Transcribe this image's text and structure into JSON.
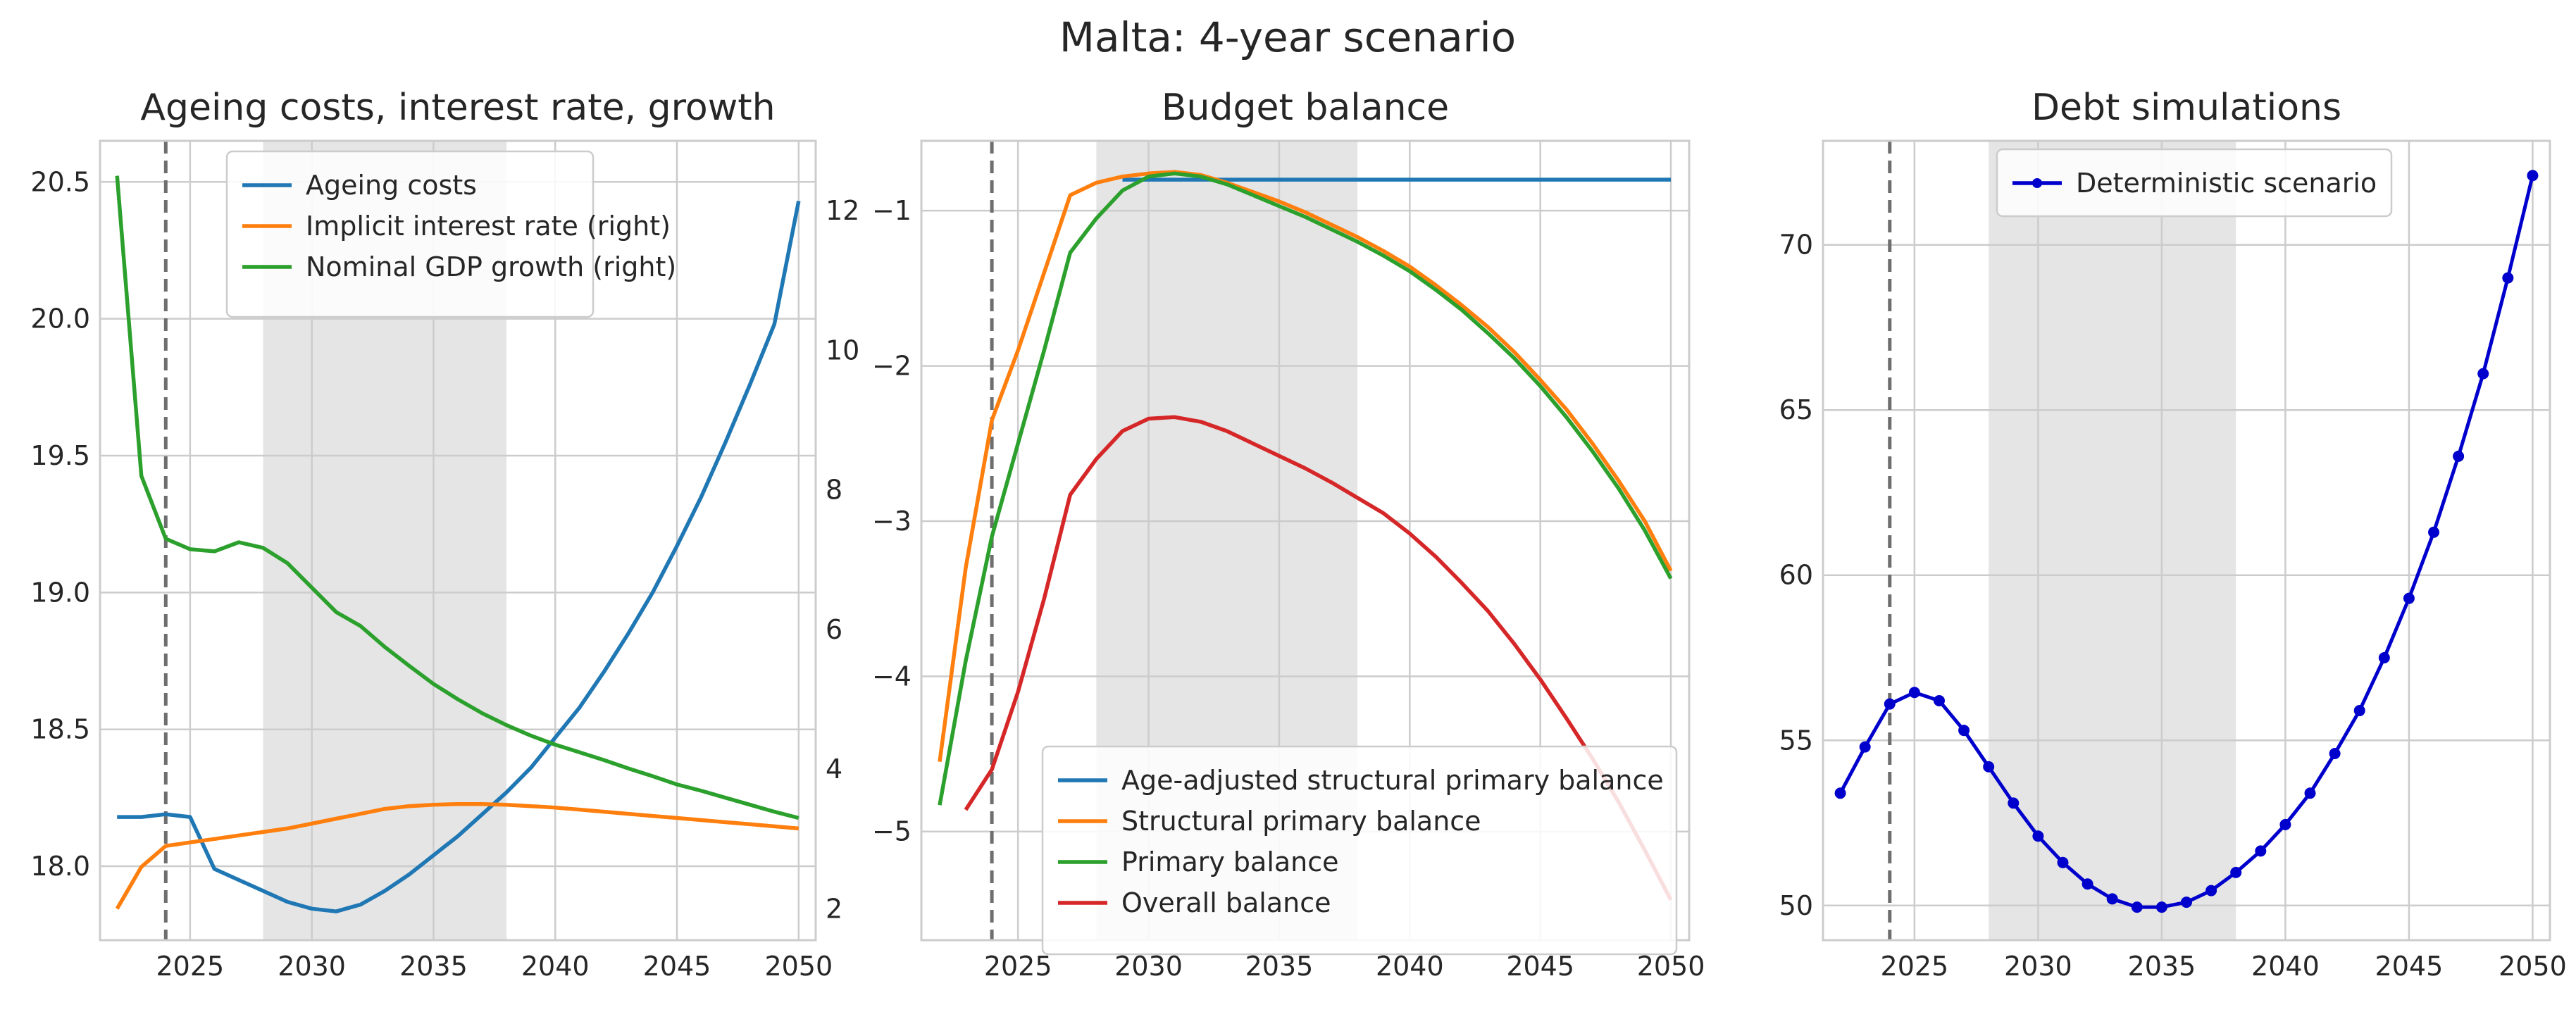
{
  "suptitle": "Malta: 4-year scenario",
  "colors": {
    "blue": "#1f77b4",
    "orange": "#ff7f0e",
    "green": "#2ca02c",
    "red": "#d62728",
    "debt": "#0000cc",
    "shade": "#e5e5e5",
    "grid": "#cccccc",
    "vline": "#6e6e6e"
  },
  "chart_data": [
    {
      "type": "line",
      "title": "Ageing costs, interest rate, growth",
      "x_ticks": [
        "2025",
        "2030",
        "2035",
        "2040",
        "2045",
        "2050"
      ],
      "xlim": [
        2021.3,
        2050.7
      ],
      "y_left": {
        "lim": [
          17.73,
          20.65
        ],
        "ticks": [
          "18.0",
          "18.5",
          "19.0",
          "19.5",
          "20.0",
          "20.5"
        ]
      },
      "y_right": {
        "lim": [
          1.55,
          13.0
        ],
        "ticks": [
          "2",
          "4",
          "6",
          "8",
          "10",
          "12"
        ]
      },
      "shaded_range": [
        2028,
        2038
      ],
      "vline_x": 2024,
      "grid": true,
      "legend_position": "upper-center",
      "series": [
        {
          "name": "Ageing costs",
          "axis": "left",
          "color": "blue",
          "x": [
            2022,
            2023,
            2024,
            2025,
            2026,
            2027,
            2028,
            2029,
            2030,
            2031,
            2032,
            2033,
            2034,
            2035,
            2036,
            2037,
            2038,
            2039,
            2040,
            2041,
            2042,
            2043,
            2044,
            2045,
            2046,
            2047,
            2048,
            2049,
            2050
          ],
          "y": [
            18.18,
            18.18,
            18.19,
            18.18,
            17.99,
            17.95,
            17.91,
            17.87,
            17.845,
            17.835,
            17.86,
            17.91,
            17.97,
            18.04,
            18.11,
            18.19,
            18.27,
            18.36,
            18.47,
            18.58,
            18.71,
            18.85,
            19.0,
            19.17,
            19.35,
            19.55,
            19.76,
            19.98,
            20.43
          ]
        },
        {
          "name": "Implicit interest rate (right)",
          "axis": "right",
          "color": "orange",
          "x": [
            2022,
            2023,
            2024,
            2025,
            2026,
            2027,
            2028,
            2029,
            2030,
            2031,
            2032,
            2033,
            2034,
            2035,
            2036,
            2037,
            2038,
            2039,
            2040,
            2041,
            2042,
            2043,
            2044,
            2045,
            2046,
            2047,
            2048,
            2049,
            2050
          ],
          "y": [
            2.0,
            2.6,
            2.9,
            2.95,
            3.0,
            3.05,
            3.1,
            3.15,
            3.22,
            3.29,
            3.36,
            3.43,
            3.47,
            3.49,
            3.5,
            3.5,
            3.49,
            3.47,
            3.45,
            3.42,
            3.39,
            3.36,
            3.33,
            3.3,
            3.27,
            3.24,
            3.21,
            3.18,
            3.15
          ]
        },
        {
          "name": "Nominal GDP growth (right)",
          "axis": "right",
          "color": "green",
          "x": [
            2022,
            2023,
            2024,
            2025,
            2026,
            2027,
            2028,
            2029,
            2030,
            2031,
            2032,
            2033,
            2034,
            2035,
            2036,
            2037,
            2038,
            2039,
            2040,
            2041,
            2042,
            2043,
            2044,
            2045,
            2046,
            2047,
            2048,
            2049,
            2050
          ],
          "y": [
            12.5,
            8.2,
            7.3,
            7.15,
            7.12,
            7.25,
            7.17,
            6.95,
            6.6,
            6.25,
            6.05,
            5.75,
            5.48,
            5.22,
            5.0,
            4.8,
            4.63,
            4.48,
            4.35,
            4.24,
            4.13,
            4.01,
            3.9,
            3.78,
            3.69,
            3.59,
            3.49,
            3.39,
            3.3
          ]
        }
      ]
    },
    {
      "type": "line",
      "title": "Budget balance",
      "x_ticks": [
        "2025",
        "2030",
        "2035",
        "2040",
        "2045",
        "2050"
      ],
      "xlim": [
        2021.3,
        2050.7
      ],
      "ylim": [
        -5.7,
        -0.55
      ],
      "y_ticks": [
        {
          "v": -5,
          "label": "−5"
        },
        {
          "v": -4,
          "label": "−4"
        },
        {
          "v": -3,
          "label": "−3"
        },
        {
          "v": -2,
          "label": "−2"
        },
        {
          "v": -1,
          "label": "−1"
        }
      ],
      "shaded_range": [
        2028,
        2038
      ],
      "vline_x": 2024,
      "grid": true,
      "legend_position": "lower-center",
      "series": [
        {
          "name": "Age-adjusted structural primary balance",
          "color": "blue",
          "x": [
            2029,
            2030,
            2031,
            2032,
            2033,
            2034,
            2035,
            2036,
            2037,
            2038,
            2039,
            2040,
            2041,
            2042,
            2043,
            2044,
            2045,
            2046,
            2047,
            2048,
            2049,
            2050
          ],
          "y": [
            -0.8,
            -0.8,
            -0.8,
            -0.8,
            -0.8,
            -0.8,
            -0.8,
            -0.8,
            -0.8,
            -0.8,
            -0.8,
            -0.8,
            -0.8,
            -0.8,
            -0.8,
            -0.8,
            -0.8,
            -0.8,
            -0.8,
            -0.8,
            -0.8,
            -0.8
          ]
        },
        {
          "name": "Structural primary balance",
          "color": "orange",
          "x": [
            2022,
            2023,
            2024,
            2025,
            2026,
            2027,
            2028,
            2029,
            2030,
            2031,
            2032,
            2033,
            2034,
            2035,
            2036,
            2037,
            2038,
            2039,
            2040,
            2041,
            2042,
            2043,
            2044,
            2045,
            2046,
            2047,
            2048,
            2049,
            2050
          ],
          "y": [
            -4.55,
            -3.3,
            -2.35,
            -1.9,
            -1.4,
            -0.9,
            -0.82,
            -0.78,
            -0.76,
            -0.75,
            -0.77,
            -0.82,
            -0.88,
            -0.94,
            -1.01,
            -1.09,
            -1.17,
            -1.26,
            -1.36,
            -1.48,
            -1.61,
            -1.75,
            -1.91,
            -2.09,
            -2.28,
            -2.5,
            -2.74,
            -3.0,
            -3.32
          ]
        },
        {
          "name": "Primary balance",
          "color": "green",
          "x": [
            2022,
            2023,
            2024,
            2025,
            2026,
            2027,
            2028,
            2029,
            2030,
            2031,
            2032,
            2033,
            2034,
            2035,
            2036,
            2037,
            2038,
            2039,
            2040,
            2041,
            2042,
            2043,
            2044,
            2045,
            2046,
            2047,
            2048,
            2049,
            2050
          ],
          "y": [
            -4.83,
            -3.9,
            -3.1,
            -2.5,
            -1.9,
            -1.27,
            -1.05,
            -0.87,
            -0.78,
            -0.76,
            -0.78,
            -0.83,
            -0.9,
            -0.97,
            -1.04,
            -1.12,
            -1.2,
            -1.29,
            -1.39,
            -1.51,
            -1.64,
            -1.79,
            -1.95,
            -2.13,
            -2.33,
            -2.55,
            -2.79,
            -3.06,
            -3.37
          ]
        },
        {
          "name": "Overall balance",
          "color": "red",
          "x": [
            2023,
            2024,
            2025,
            2026,
            2027,
            2028,
            2029,
            2030,
            2031,
            2032,
            2033,
            2034,
            2035,
            2036,
            2037,
            2038,
            2039,
            2040,
            2041,
            2042,
            2043,
            2044,
            2045,
            2046,
            2047,
            2048,
            2049,
            2050
          ],
          "y": [
            -4.86,
            -4.6,
            -4.1,
            -3.5,
            -2.83,
            -2.6,
            -2.42,
            -2.34,
            -2.33,
            -2.36,
            -2.42,
            -2.5,
            -2.58,
            -2.66,
            -2.75,
            -2.85,
            -2.95,
            -3.08,
            -3.23,
            -3.4,
            -3.58,
            -3.79,
            -4.02,
            -4.27,
            -4.53,
            -4.81,
            -5.12,
            -5.44
          ]
        }
      ]
    },
    {
      "type": "line",
      "title": "Debt simulations",
      "x_ticks": [
        "2025",
        "2030",
        "2035",
        "2040",
        "2045",
        "2050"
      ],
      "xlim": [
        2021.3,
        2050.7
      ],
      "ylim": [
        48.95,
        73.15
      ],
      "y_ticks": [
        {
          "v": 50,
          "label": "50"
        },
        {
          "v": 55,
          "label": "55"
        },
        {
          "v": 60,
          "label": "60"
        },
        {
          "v": 65,
          "label": "65"
        },
        {
          "v": 70,
          "label": "70"
        }
      ],
      "shaded_range": [
        2028,
        2038
      ],
      "vline_x": 2024,
      "grid": true,
      "legend_position": "upper-center",
      "series": [
        {
          "name": "Deterministic scenario",
          "color": "debt",
          "markers": true,
          "x": [
            2022,
            2023,
            2024,
            2025,
            2026,
            2027,
            2028,
            2029,
            2030,
            2031,
            2032,
            2033,
            2034,
            2035,
            2036,
            2037,
            2038,
            2039,
            2040,
            2041,
            2042,
            2043,
            2044,
            2045,
            2046,
            2047,
            2048,
            2049,
            2050
          ],
          "y": [
            53.4,
            54.8,
            56.1,
            56.45,
            56.2,
            55.3,
            54.2,
            53.1,
            52.1,
            51.3,
            50.65,
            50.2,
            49.95,
            49.95,
            50.1,
            50.45,
            51.0,
            51.65,
            52.45,
            53.4,
            54.6,
            55.9,
            57.5,
            59.3,
            61.3,
            63.6,
            66.1,
            69.0,
            72.1
          ]
        }
      ]
    }
  ]
}
